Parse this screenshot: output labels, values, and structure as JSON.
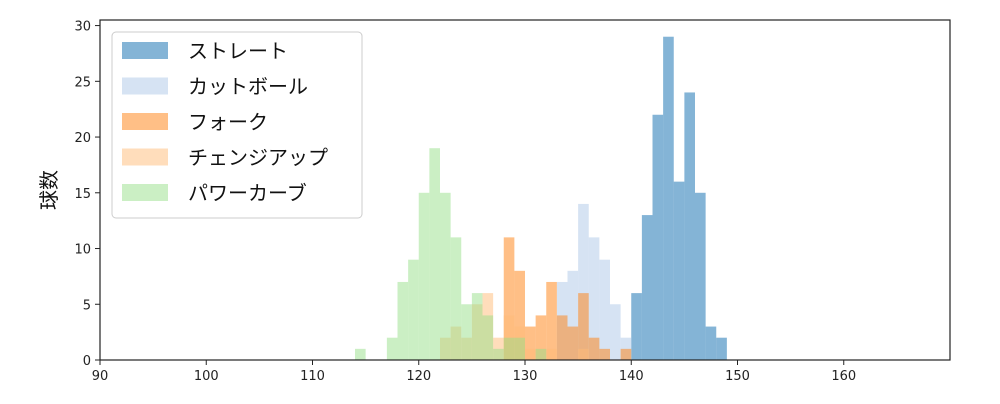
{
  "chart_data": {
    "type": "histogram",
    "ylabel": "球数",
    "xlabel": "",
    "xlim": [
      90,
      170
    ],
    "ylim": [
      0,
      30.5
    ],
    "xticks": [
      90,
      100,
      110,
      120,
      130,
      140,
      150,
      160
    ],
    "yticks": [
      0,
      5,
      10,
      15,
      20,
      25,
      30
    ],
    "bin_width": 1,
    "legend_position": "top-left",
    "grid": false,
    "series": [
      {
        "name": "ストレート",
        "color": "#1f77b4",
        "bins": {
          "140": 6,
          "141": 13,
          "142": 22,
          "143": 29,
          "144": 16,
          "145": 24,
          "146": 15,
          "147": 3,
          "148": 2
        }
      },
      {
        "name": "カットボール",
        "color": "#aec7e8",
        "bins": {
          "133": 7,
          "134": 8,
          "135": 14,
          "136": 11,
          "137": 9,
          "138": 5,
          "139": 2
        }
      },
      {
        "name": "フォーク",
        "color": "#ff7f0e",
        "bins": {
          "128": 11,
          "129": 8,
          "130": 3,
          "131": 4,
          "132": 7,
          "133": 4,
          "134": 3,
          "135": 6,
          "136": 2,
          "137": 1,
          "139": 1
        }
      },
      {
        "name": "チェンジアップ",
        "color": "#ffbb78",
        "bins": {
          "122": 2,
          "123": 3,
          "124": 2,
          "125": 5,
          "126": 6,
          "127": 2,
          "128": 4,
          "129": 3,
          "130": 1,
          "132": 1,
          "135": 1
        }
      },
      {
        "name": "パワーカーブ",
        "color": "#98df8a",
        "bins": {
          "114": 1,
          "117": 2,
          "118": 7,
          "119": 9,
          "120": 15,
          "121": 19,
          "122": 15,
          "123": 11,
          "124": 5,
          "125": 6,
          "126": 4,
          "127": 1,
          "128": 2,
          "129": 2,
          "131": 1
        }
      }
    ]
  }
}
